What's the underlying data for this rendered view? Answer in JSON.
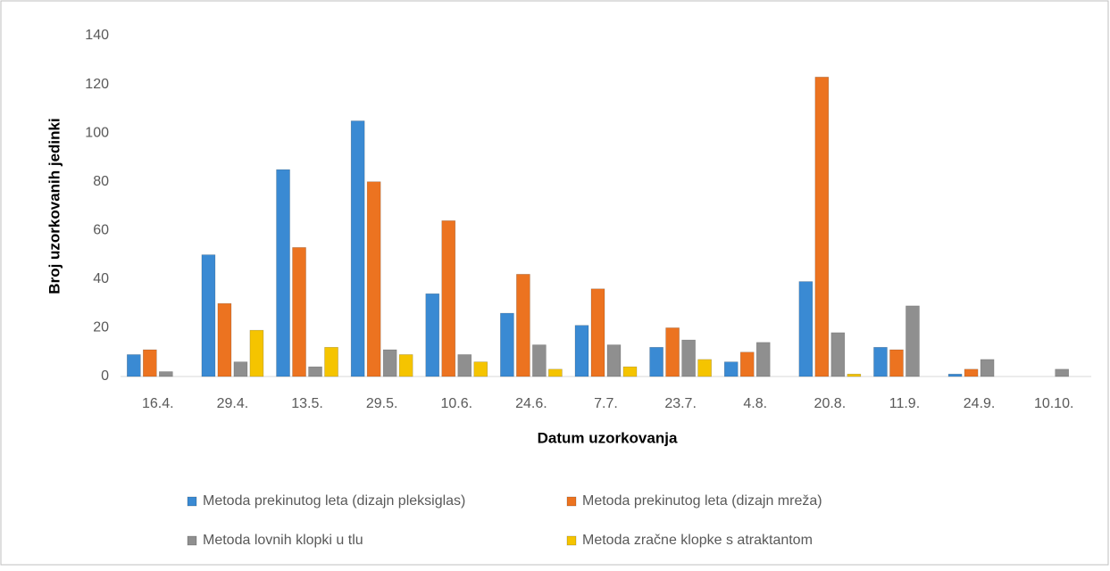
{
  "chart_data": {
    "type": "bar",
    "x_label": "Datum uzorkovanja",
    "y_label": "Broj uzorkovanih jedinki",
    "categories": [
      "16.4.",
      "29.4.",
      "13.5.",
      "29.5.",
      "10.6.",
      "24.6.",
      "7.7.",
      "23.7.",
      "4.8.",
      "20.8.",
      "11.9.",
      "24.9.",
      "10.10."
    ],
    "series": [
      {
        "name": "Metoda prekinutog leta (dizajn pleksiglas)",
        "color": "#3a8ad3",
        "values": [
          9,
          50,
          85,
          105,
          34,
          26,
          21,
          12,
          6,
          39,
          12,
          1,
          0
        ]
      },
      {
        "name": "Metoda prekinutog leta (dizajn mreža)",
        "color": "#ec7320",
        "values": [
          11,
          30,
          53,
          80,
          64,
          42,
          36,
          20,
          10,
          123,
          11,
          3,
          0
        ]
      },
      {
        "name": "Metoda lovnih klopki u tlu",
        "color": "#8f8f8f",
        "values": [
          2,
          6,
          4,
          11,
          9,
          13,
          13,
          15,
          14,
          18,
          29,
          7,
          3
        ]
      },
      {
        "name": "Metoda zračne klopke s atraktantom",
        "color": "#f5c400",
        "values": [
          0,
          19,
          12,
          9,
          6,
          3,
          4,
          7,
          0,
          1,
          0,
          0,
          0
        ]
      }
    ],
    "ylim": [
      0,
      140
    ],
    "yticks": [
      0,
      20,
      40,
      60,
      80,
      100,
      120,
      140
    ],
    "grid": false,
    "legend": "bottom"
  }
}
